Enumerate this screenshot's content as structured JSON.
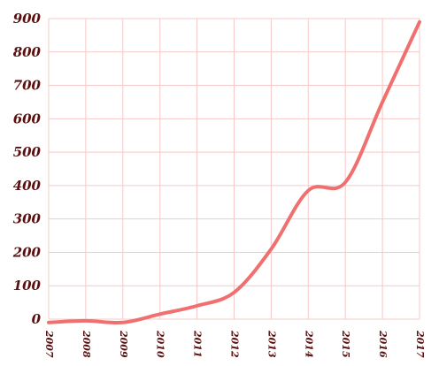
{
  "chart_data": {
    "type": "line",
    "title": "",
    "xlabel": "",
    "ylabel": "",
    "x": [
      "2007",
      "2008",
      "2009",
      "2010",
      "2011",
      "2012",
      "2013",
      "2014",
      "2015",
      "2016",
      "2017"
    ],
    "series": [
      {
        "values": [
          -10,
          -5,
          -10,
          15,
          40,
          80,
          210,
          385,
          410,
          650,
          890
        ]
      }
    ],
    "y_ticks": [
      "0",
      "100",
      "200",
      "300",
      "400",
      "500",
      "600",
      "700",
      "800",
      "900"
    ],
    "ylim": [
      0,
      900
    ],
    "grid": true,
    "legend": "none",
    "colors": {
      "line": "#f07070",
      "grid": "#f6c9c9",
      "tick_text": "#5a1010"
    }
  }
}
